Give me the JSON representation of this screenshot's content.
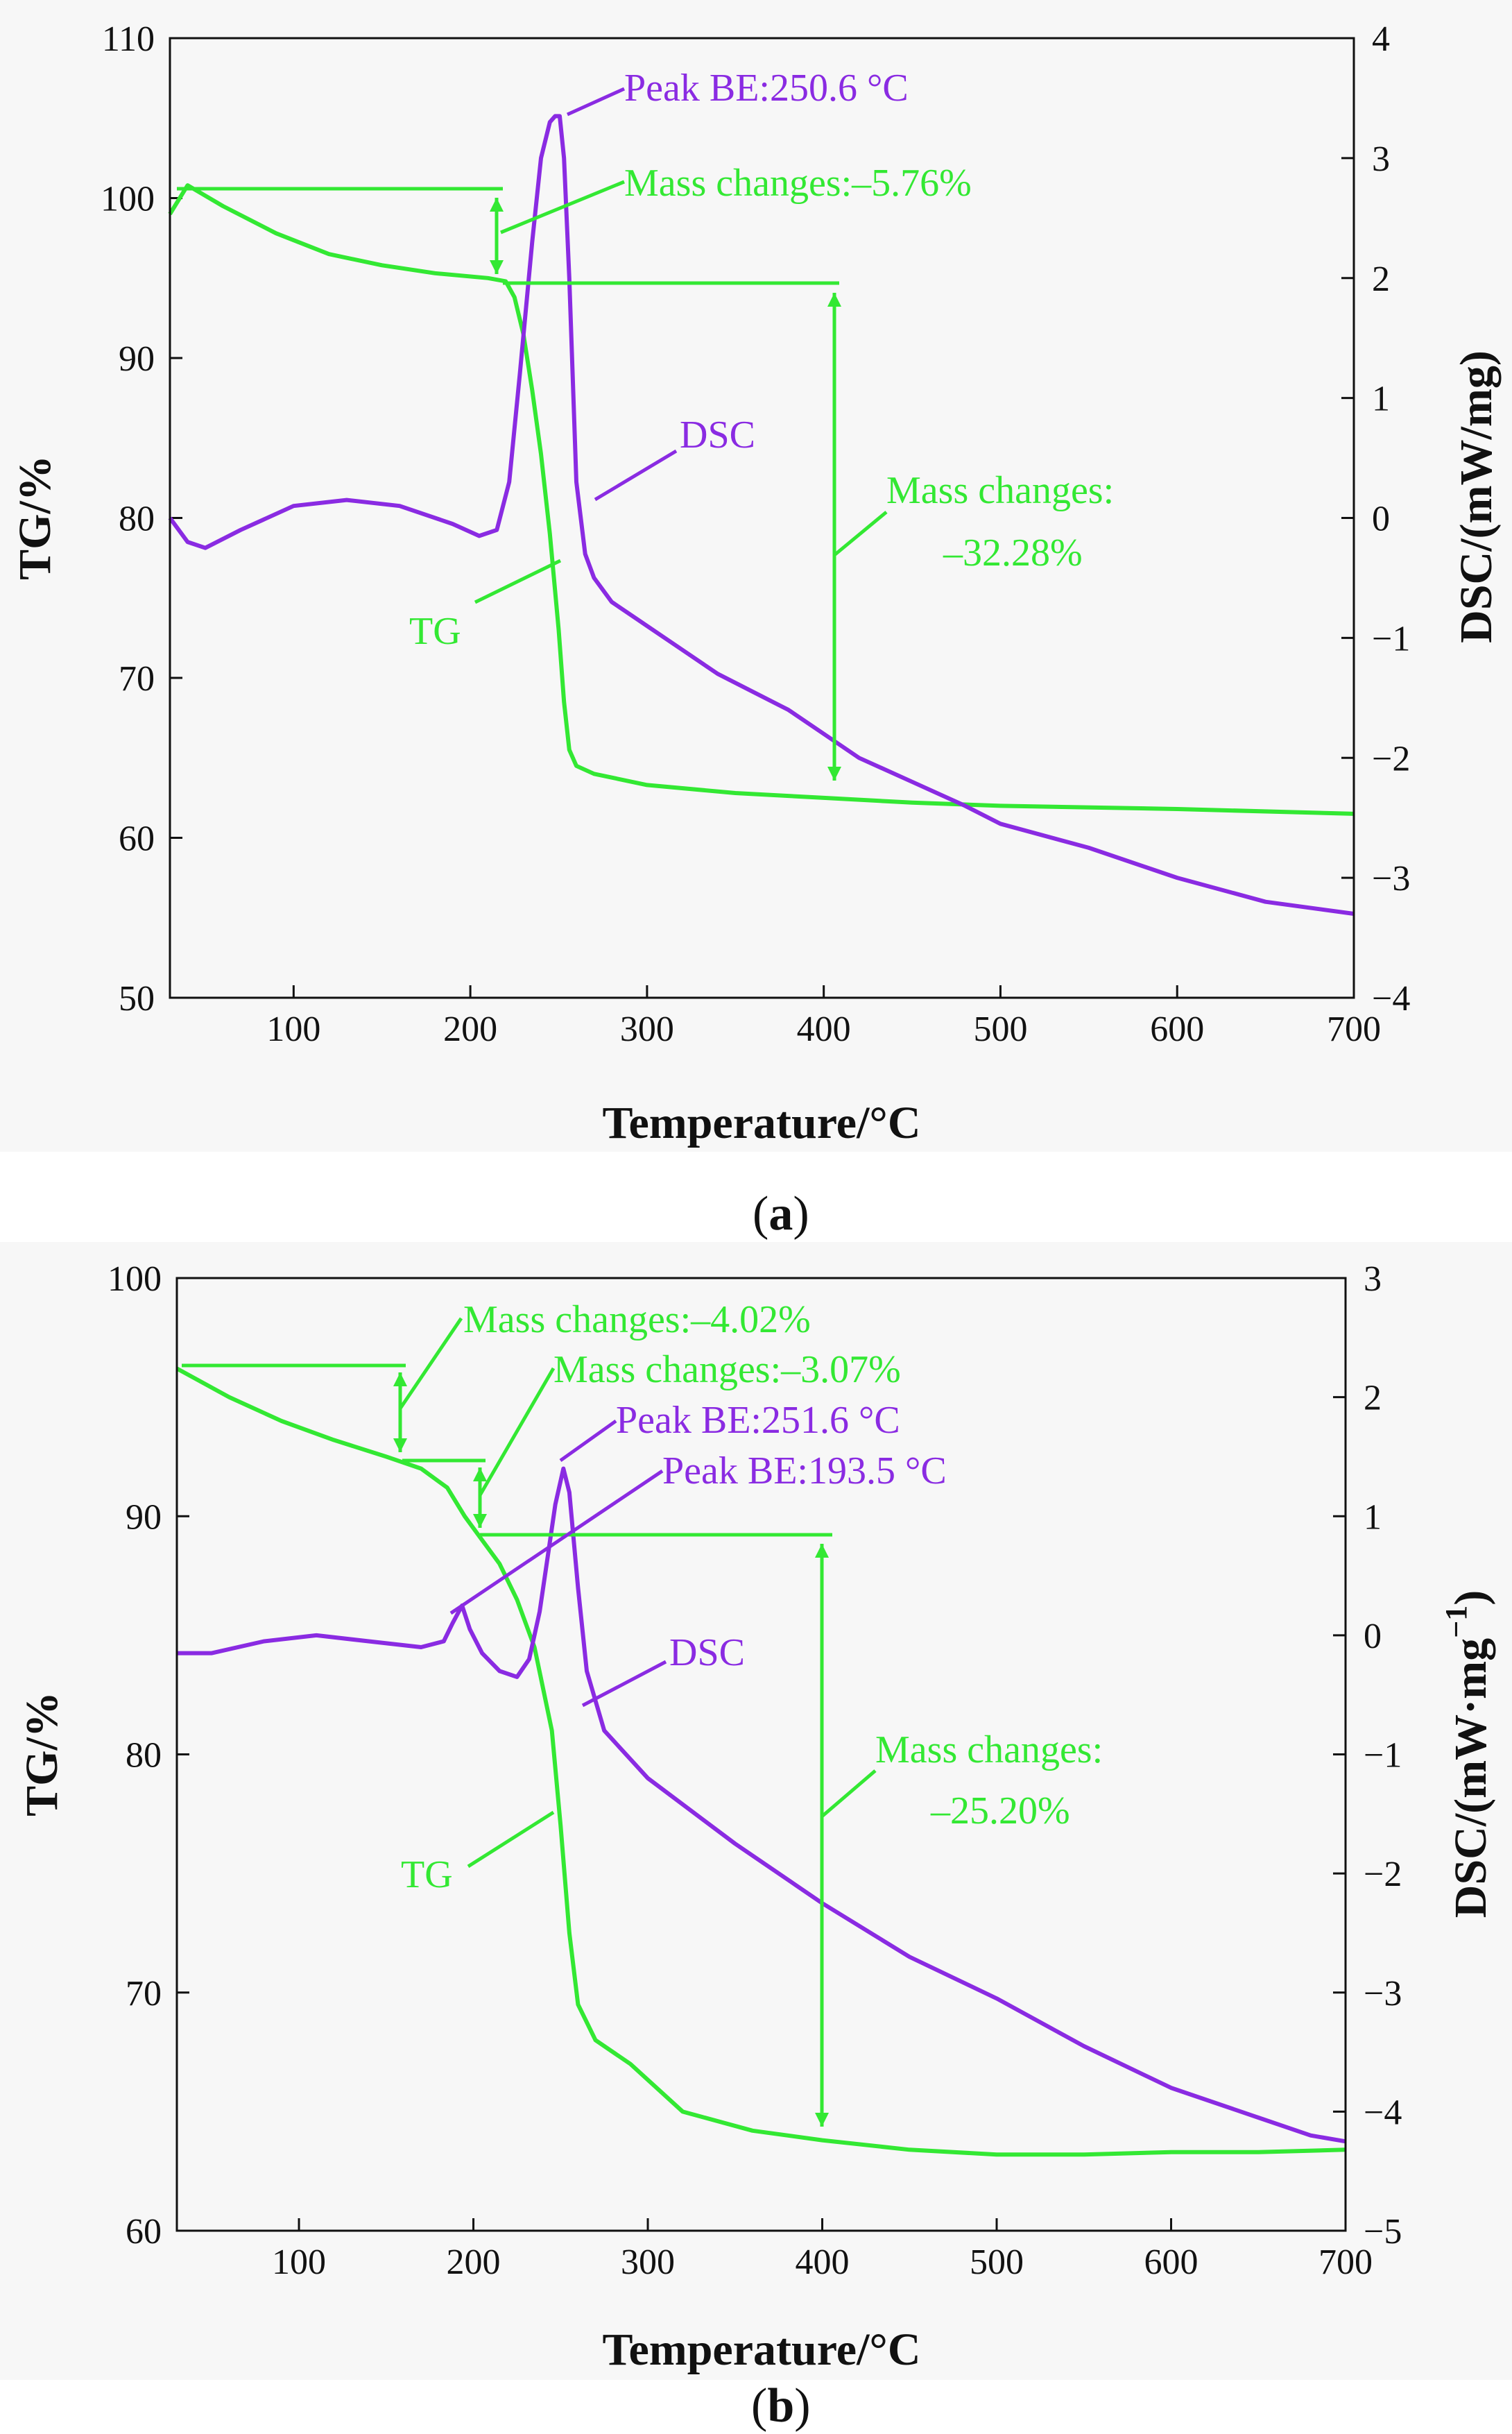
{
  "chart_data": [
    {
      "id": "a",
      "type": "line",
      "caption": "(a)",
      "xlabel": "Temperature/°C",
      "ylabel_left": "TG/%",
      "ylabel_right": "DSC/(mW/mg)",
      "xlim": [
        30,
        700
      ],
      "ylim_left": [
        50,
        110
      ],
      "ylim_right": [
        -4,
        4
      ],
      "xticks": [
        100,
        200,
        300,
        400,
        500,
        600,
        700
      ],
      "yticks_left": [
        50,
        60,
        70,
        80,
        90,
        100,
        110
      ],
      "yticks_right": [
        -4,
        -3,
        -2,
        -1,
        0,
        1,
        2,
        3,
        4
      ],
      "series": [
        {
          "name": "TG",
          "axis": "left",
          "x": [
            30,
            40,
            60,
            90,
            120,
            150,
            180,
            210,
            220,
            225,
            230,
            235,
            240,
            245,
            250,
            253,
            256,
            260,
            270,
            300,
            350,
            400,
            450,
            500,
            600,
            700
          ],
          "y": [
            99.0,
            100.8,
            99.5,
            97.8,
            96.5,
            95.8,
            95.3,
            95.0,
            94.8,
            93.8,
            91.5,
            88.0,
            84.0,
            79.0,
            73.0,
            68.5,
            65.5,
            64.5,
            64.0,
            63.3,
            62.8,
            62.5,
            62.2,
            62.0,
            61.8,
            61.5
          ]
        },
        {
          "name": "DSC",
          "axis": "right",
          "x": [
            30,
            40,
            50,
            70,
            100,
            130,
            160,
            190,
            205,
            215,
            222,
            228,
            235,
            240,
            245,
            248,
            250.6,
            253,
            256,
            260,
            265,
            270,
            280,
            300,
            320,
            340,
            360,
            380,
            400,
            420,
            450,
            480,
            500,
            550,
            600,
            650,
            700
          ],
          "y": [
            0.0,
            -0.2,
            -0.25,
            -0.1,
            0.1,
            0.15,
            0.1,
            -0.05,
            -0.15,
            -0.1,
            0.3,
            1.2,
            2.3,
            3.0,
            3.3,
            3.35,
            3.35,
            3.0,
            2.0,
            0.3,
            -0.3,
            -0.5,
            -0.7,
            -0.9,
            -1.1,
            -1.3,
            -1.45,
            -1.6,
            -1.8,
            -2.0,
            -2.2,
            -2.4,
            -2.55,
            -2.75,
            -3.0,
            -3.2,
            -3.3
          ]
        }
      ],
      "annotations": [
        {
          "text": "Peak BE:250.6 °C",
          "color": "#8a2be2"
        },
        {
          "text": "Mass changes:–5.76%",
          "color": "#33e833"
        },
        {
          "text": "DSC",
          "color": "#8a2be2"
        },
        {
          "text": "Mass changes:",
          "color": "#33e833"
        },
        {
          "text": "–32.28%",
          "color": "#33e833"
        },
        {
          "text": "TG",
          "color": "#33e833"
        }
      ]
    },
    {
      "id": "b",
      "type": "line",
      "caption": "(b)",
      "xlabel": "Temperature/°C",
      "ylabel_left": "TG/%",
      "ylabel_right": "DSC/(mW·mg",
      "ylabel_right_sup": "−1",
      "ylabel_right_end": ")",
      "xlim": [
        30,
        700
      ],
      "ylim_left": [
        60,
        100
      ],
      "ylim_right": [
        -5,
        3
      ],
      "xticks": [
        100,
        200,
        300,
        400,
        500,
        600,
        700
      ],
      "yticks_left": [
        60,
        70,
        80,
        90,
        100
      ],
      "yticks_right": [
        -5,
        -4,
        -3,
        -2,
        -1,
        0,
        1,
        2,
        3
      ],
      "series": [
        {
          "name": "TG",
          "axis": "left",
          "x": [
            30,
            60,
            90,
            120,
            150,
            170,
            185,
            195,
            205,
            215,
            225,
            235,
            245,
            250,
            255,
            260,
            270,
            290,
            320,
            360,
            400,
            450,
            500,
            550,
            600,
            650,
            700
          ],
          "y": [
            96.2,
            95.0,
            94.0,
            93.2,
            92.5,
            92.0,
            91.2,
            90.0,
            89.0,
            88.0,
            86.5,
            84.5,
            81.0,
            77.0,
            72.5,
            69.5,
            68.0,
            67.0,
            65.0,
            64.2,
            63.8,
            63.4,
            63.2,
            63.2,
            63.3,
            63.3,
            63.4
          ]
        },
        {
          "name": "DSC",
          "axis": "right",
          "x": [
            30,
            50,
            80,
            110,
            140,
            170,
            183,
            188,
            193.5,
            198,
            205,
            215,
            225,
            232,
            238,
            243,
            247,
            251.6,
            255,
            260,
            265,
            275,
            300,
            350,
            400,
            450,
            500,
            550,
            600,
            650,
            680,
            700
          ],
          "y": [
            -0.15,
            -0.15,
            -0.05,
            0.0,
            -0.05,
            -0.1,
            -0.05,
            0.1,
            0.25,
            0.05,
            -0.15,
            -0.3,
            -0.35,
            -0.2,
            0.2,
            0.7,
            1.1,
            1.4,
            1.2,
            0.4,
            -0.3,
            -0.8,
            -1.2,
            -1.75,
            -2.25,
            -2.7,
            -3.05,
            -3.45,
            -3.8,
            -4.05,
            -4.2,
            -4.25
          ]
        }
      ],
      "annotations": [
        {
          "text": "Mass changes:–4.02%",
          "color": "#33e833"
        },
        {
          "text": "Mass changes:–3.07%",
          "color": "#33e833"
        },
        {
          "text": "Peak BE:251.6 °C",
          "color": "#8a2be2"
        },
        {
          "text": "Peak BE:193.5 °C",
          "color": "#8a2be2"
        },
        {
          "text": "DSC",
          "color": "#8a2be2"
        },
        {
          "text": "Mass changes:",
          "color": "#33e833"
        },
        {
          "text": "–25.20%",
          "color": "#33e833"
        },
        {
          "text": "TG",
          "color": "#33e833"
        }
      ]
    }
  ]
}
